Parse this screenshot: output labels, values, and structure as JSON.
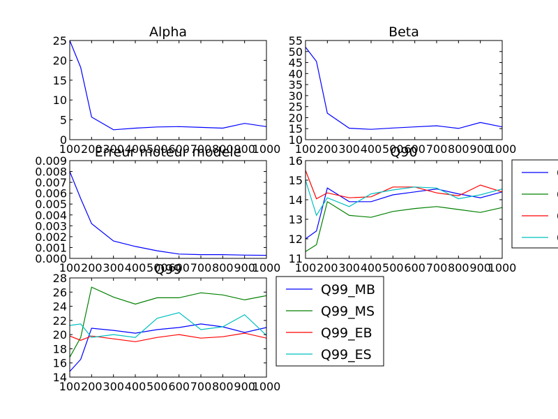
{
  "chart_data": [
    {
      "type": "line",
      "title": "Alpha",
      "x": [
        100,
        150,
        200,
        300,
        400,
        500,
        600,
        700,
        800,
        900,
        1000
      ],
      "xlim": [
        100,
        1000
      ],
      "xticks": [
        100,
        200,
        300,
        400,
        500,
        600,
        700,
        800,
        900,
        1000
      ],
      "ylim": [
        0,
        25
      ],
      "yticks": [
        "0",
        "5",
        "10",
        "15",
        "20",
        "25"
      ],
      "series": [
        {
          "color": "#0000ff",
          "values": [
            25,
            18.2,
            5.7,
            2.5,
            2.9,
            3.2,
            3.3,
            3.1,
            2.9,
            4.1,
            3.3
          ]
        }
      ]
    },
    {
      "type": "line",
      "title": "Beta",
      "x": [
        100,
        150,
        200,
        300,
        400,
        500,
        600,
        700,
        800,
        900,
        1000
      ],
      "xlim": [
        100,
        1000
      ],
      "xticks": [
        100,
        200,
        300,
        400,
        500,
        600,
        700,
        800,
        900,
        1000
      ],
      "ylim": [
        10,
        55
      ],
      "yticks": [
        "10",
        "15",
        "20",
        "25",
        "30",
        "35",
        "40",
        "45",
        "50",
        "55"
      ],
      "series": [
        {
          "color": "#0000ff",
          "values": [
            52,
            45.5,
            22,
            15.2,
            14.7,
            15.3,
            15.8,
            16.3,
            15.1,
            17.8,
            15.8
          ]
        }
      ]
    },
    {
      "type": "line",
      "title": "Erreur moteur modele",
      "x": [
        100,
        150,
        200,
        300,
        400,
        500,
        600,
        700,
        800,
        900,
        1000
      ],
      "xlim": [
        100,
        1000
      ],
      "xticks": [
        100,
        200,
        300,
        400,
        500,
        600,
        700,
        800,
        900,
        1000
      ],
      "ylim": [
        0,
        0.009
      ],
      "yticks": [
        "0.000",
        "0.001",
        "0.002",
        "0.003",
        "0.004",
        "0.005",
        "0.006",
        "0.007",
        "0.008",
        "0.009"
      ],
      "series": [
        {
          "color": "#0000ff",
          "values": [
            0.008,
            0.0055,
            0.0032,
            0.0016,
            0.0011,
            0.0007,
            0.0004,
            0.00035,
            0.00035,
            0.0003,
            0.00028
          ]
        }
      ]
    },
    {
      "type": "line",
      "title": "Q90",
      "x": [
        100,
        150,
        200,
        300,
        400,
        500,
        600,
        700,
        800,
        900,
        1000
      ],
      "xlim": [
        100,
        1000
      ],
      "xticks": [
        100,
        200,
        300,
        400,
        500,
        600,
        700,
        800,
        900,
        1000
      ],
      "ylim": [
        11,
        16
      ],
      "yticks": [
        "11",
        "12",
        "13",
        "14",
        "15",
        "16"
      ],
      "legend_position": "right",
      "legend_labels": [
        "Q",
        "Q",
        "Q",
        "Q"
      ],
      "series": [
        {
          "color": "#0000ff",
          "values": [
            12.0,
            12.4,
            14.6,
            13.9,
            13.9,
            14.25,
            14.4,
            14.55,
            14.3,
            14.1,
            14.4
          ]
        },
        {
          "color": "#008000",
          "values": [
            11.35,
            11.7,
            13.9,
            13.2,
            13.1,
            13.4,
            13.55,
            13.65,
            13.5,
            13.35,
            13.6
          ]
        },
        {
          "color": "#ff0000",
          "values": [
            15.5,
            14.05,
            14.35,
            14.1,
            14.15,
            14.65,
            14.65,
            14.35,
            14.2,
            14.75,
            14.4
          ]
        },
        {
          "color": "#00bfbf",
          "values": [
            15.0,
            13.2,
            14.1,
            13.65,
            14.3,
            14.5,
            14.65,
            14.6,
            14.05,
            14.25,
            14.55
          ]
        }
      ]
    },
    {
      "type": "line",
      "title": "Q99",
      "x": [
        100,
        150,
        200,
        300,
        400,
        500,
        600,
        700,
        800,
        900,
        1000
      ],
      "xlim": [
        100,
        1000
      ],
      "xticks": [
        100,
        200,
        300,
        400,
        500,
        600,
        700,
        800,
        900,
        1000
      ],
      "ylim": [
        14,
        28
      ],
      "yticks": [
        "14",
        "16",
        "18",
        "20",
        "22",
        "24",
        "26",
        "28"
      ],
      "legend_position": "right",
      "legend_labels": [
        "Q99_MB",
        "Q99_MS",
        "Q99_EB",
        "Q99_ES"
      ],
      "series": [
        {
          "name": "Q99_MB",
          "color": "#0000ff",
          "values": [
            14.8,
            16.5,
            20.9,
            20.6,
            20.2,
            20.7,
            21.0,
            21.5,
            21.1,
            20.3,
            21.0
          ]
        },
        {
          "name": "Q99_MS",
          "color": "#008000",
          "values": [
            16.8,
            19.6,
            26.7,
            25.3,
            24.3,
            25.2,
            25.2,
            25.9,
            25.6,
            24.9,
            25.5
          ]
        },
        {
          "name": "Q99_EB",
          "color": "#ff0000",
          "values": [
            19.8,
            19.2,
            19.8,
            19.4,
            19.0,
            19.6,
            20.0,
            19.5,
            19.7,
            20.2,
            19.5
          ]
        },
        {
          "name": "Q99_ES",
          "color": "#00bfbf",
          "values": [
            21.3,
            21.5,
            19.6,
            20.0,
            19.6,
            22.3,
            23.1,
            20.7,
            21.1,
            22.8,
            19.9
          ]
        }
      ]
    }
  ]
}
